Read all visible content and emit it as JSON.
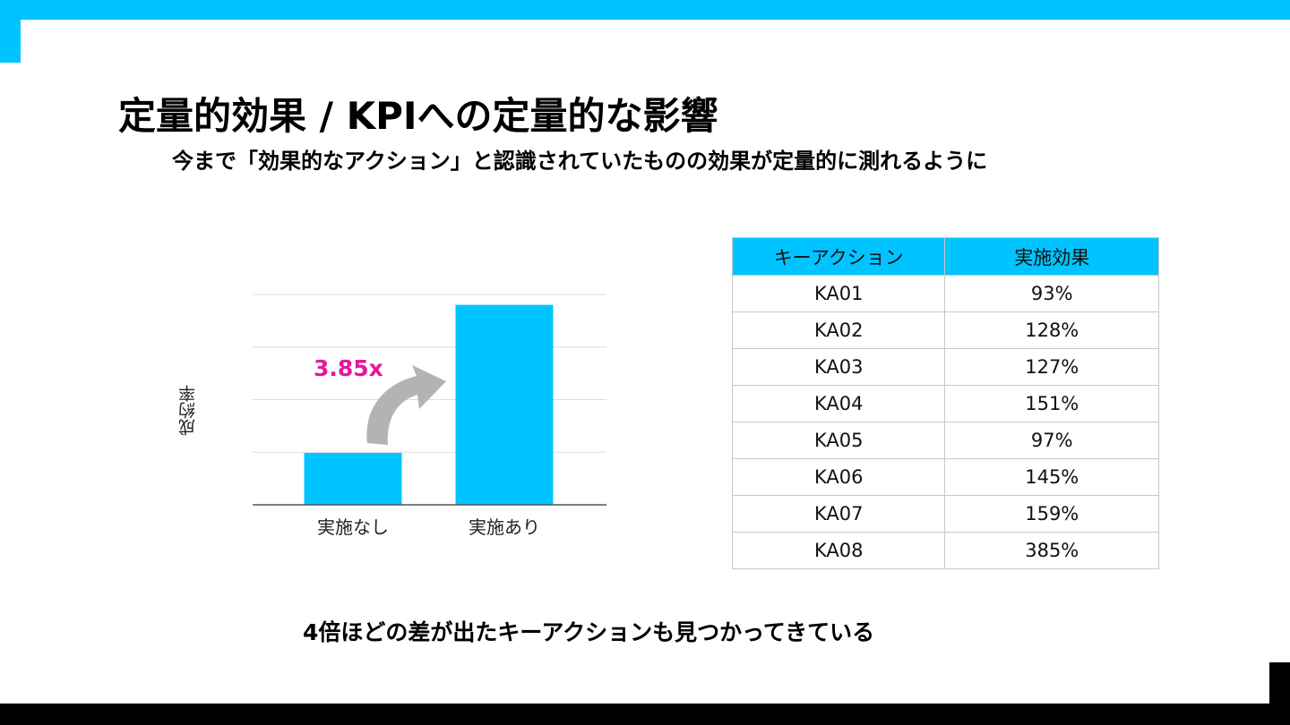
{
  "title": "定量的効果 / KPIへの定量的な影響",
  "subtitle": "今まで「効果的なアクション」と認識されていたものの効果が定量的に測れるように",
  "footer_note": "4倍ほどの差が出たキーアクションも見つかってきている",
  "colors": {
    "accent": "#00c4ff",
    "highlight": "#e6179b",
    "arrow": "#b3b3b3",
    "dark": "#000000"
  },
  "chart_data": {
    "type": "bar",
    "categories": [
      "実施なし",
      "実施あり"
    ],
    "values": [
      1,
      3.85
    ],
    "ylabel": "成約率",
    "ylim": [
      0,
      4.05
    ],
    "grid": true,
    "annotation": "3.85x"
  },
  "table": {
    "headers": [
      "キーアクション",
      "実施効果"
    ],
    "rows": [
      [
        "KA01",
        "93%"
      ],
      [
        "KA02",
        "128%"
      ],
      [
        "KA03",
        "127%"
      ],
      [
        "KA04",
        "151%"
      ],
      [
        "KA05",
        "97%"
      ],
      [
        "KA06",
        "145%"
      ],
      [
        "KA07",
        "159%"
      ],
      [
        "KA08",
        "385%"
      ]
    ]
  }
}
